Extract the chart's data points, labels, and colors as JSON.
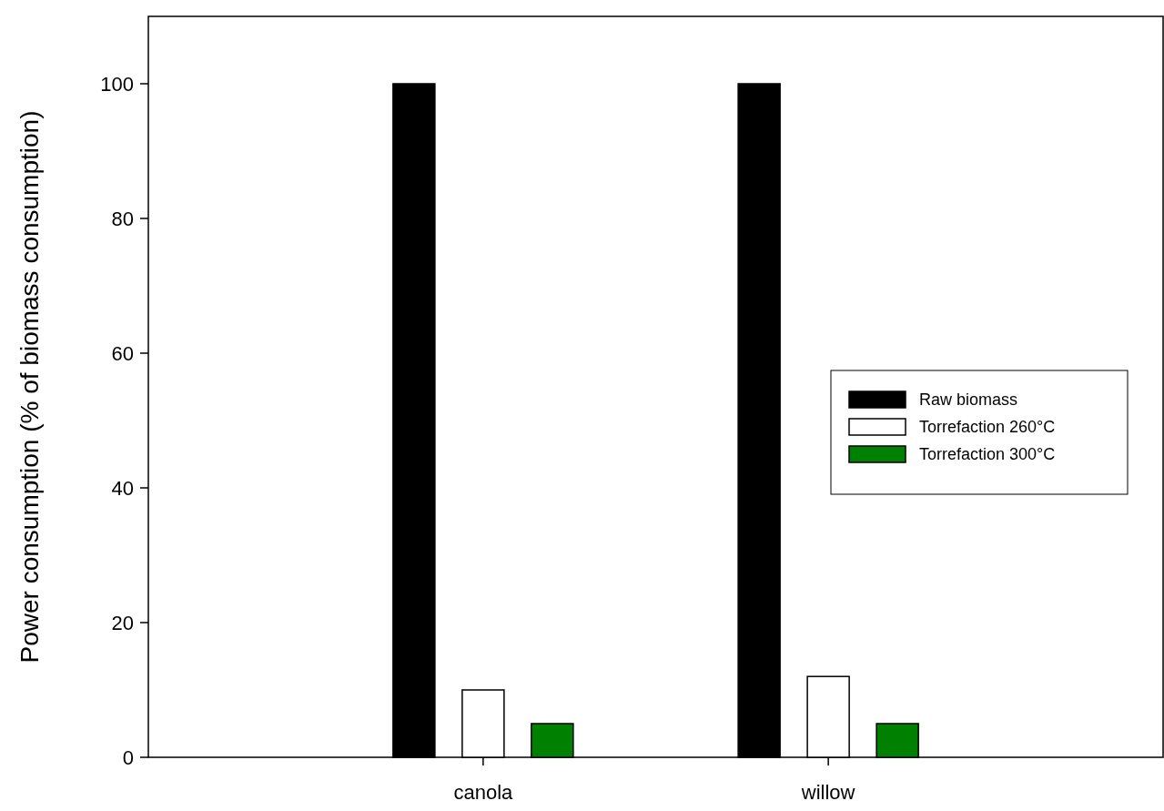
{
  "chart_data": {
    "type": "bar",
    "ylabel": "Power consumption (% of biomass consumption)",
    "categories": [
      "canola",
      "willow"
    ],
    "series": [
      {
        "name": "Raw biomass",
        "color": "#000000",
        "values": [
          100,
          100
        ]
      },
      {
        "name": "Torrefaction 260°C",
        "color": "#ffffff",
        "values": [
          10,
          12
        ]
      },
      {
        "name": "Torrefaction 300°C",
        "color": "#008000",
        "values": [
          5,
          5
        ]
      }
    ],
    "ylim": [
      0,
      110
    ],
    "yticks": [
      0,
      20,
      40,
      60,
      80,
      100
    ],
    "grid": false,
    "legend": "right"
  }
}
